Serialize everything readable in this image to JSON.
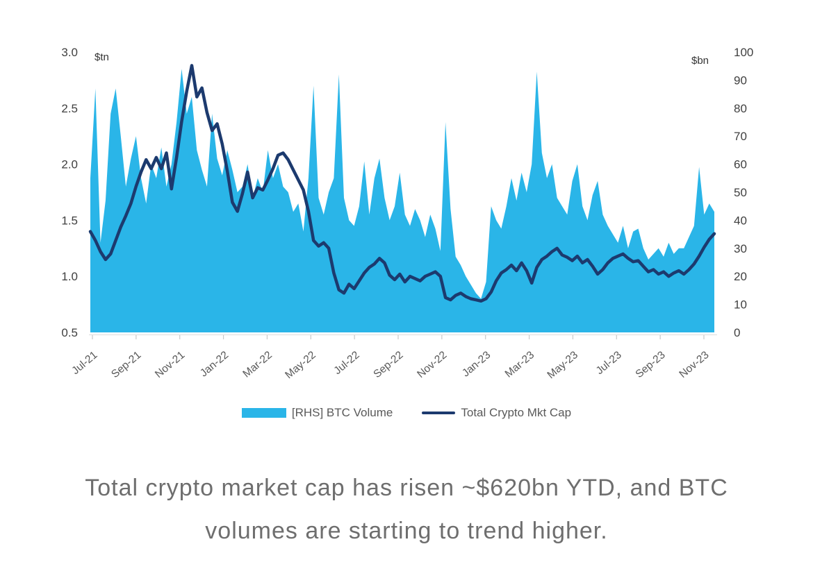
{
  "caption": {
    "line1": "Total crypto market cap has risen ~$620bn YTD, and BTC",
    "line2": "volumes are starting to trend higher."
  },
  "chart_data": {
    "type": "area+line",
    "title": "",
    "grid": false,
    "legend_position": "bottom",
    "x_range": [
      "Jul-21",
      "Nov-23"
    ],
    "resolution": "weekly (estimated from pixels)",
    "x_tick_labels": [
      "Jul-21",
      "Sep-21",
      "Nov-21",
      "Jan-22",
      "Mar-22",
      "May-22",
      "Jul-22",
      "Sep-22",
      "Nov-22",
      "Jan-23",
      "Mar-23",
      "May-23",
      "Jul-23",
      "Sep-23",
      "Nov-23"
    ],
    "left_axis": {
      "label": "$tn",
      "min": 0.5,
      "max": 3.0,
      "ticks": [
        "3.0",
        "2.5",
        "2.0",
        "1.5",
        "1.0",
        "0.5"
      ]
    },
    "right_axis": {
      "label": "$bn",
      "min": 0,
      "max": 100,
      "ticks": [
        "100",
        "90",
        "80",
        "70",
        "60",
        "50",
        "40",
        "30",
        "20",
        "10",
        "0"
      ]
    },
    "colors": {
      "volume_area": "#2ab5e8",
      "mkt_cap_line": "#1c3a6e",
      "axis_text": "#3f3f3f",
      "x_label_text": "#595959",
      "legend_text": "#595959",
      "caption_text": "#6e6e6e",
      "tick_mark": "#c9c9c9"
    },
    "series": [
      {
        "name": "[RHS] BTC Volume",
        "type": "area",
        "axis": "right",
        "unit": "$bn",
        "color": "#2ab5e8",
        "values": [
          55,
          87,
          32,
          47,
          78,
          87,
          70,
          52,
          62,
          70,
          55,
          46,
          60,
          55,
          66,
          52,
          60,
          75,
          94,
          78,
          84,
          65,
          58,
          52,
          78,
          62,
          56,
          65,
          58,
          50,
          52,
          60,
          48,
          55,
          50,
          65,
          55,
          60,
          52,
          50,
          43,
          46,
          36,
          55,
          88,
          48,
          42,
          50,
          55,
          92,
          48,
          40,
          38,
          45,
          61,
          42,
          55,
          62,
          48,
          40,
          45,
          57,
          42,
          38,
          44,
          40,
          34,
          42,
          37,
          29,
          75,
          44,
          27,
          24,
          20,
          17,
          14,
          12,
          18,
          45,
          40,
          37,
          45,
          55,
          47,
          57,
          50,
          60,
          93,
          64,
          55,
          60,
          48,
          45,
          42,
          54,
          60,
          45,
          40,
          49,
          54,
          42,
          38,
          35,
          32,
          38,
          30,
          36,
          37,
          30,
          26,
          28,
          30,
          27,
          32,
          28,
          30,
          30,
          34,
          38,
          59,
          42,
          46,
          43
        ]
      },
      {
        "name": "Total Crypto Mkt Cap",
        "type": "line",
        "axis": "left",
        "unit": "$tn",
        "color": "#1c3a6e",
        "values": [
          1.4,
          1.32,
          1.22,
          1.15,
          1.2,
          1.32,
          1.44,
          1.54,
          1.65,
          1.8,
          1.93,
          2.04,
          1.96,
          2.06,
          1.96,
          2.1,
          1.78,
          2.06,
          2.38,
          2.65,
          2.88,
          2.6,
          2.68,
          2.46,
          2.3,
          2.36,
          2.18,
          1.94,
          1.66,
          1.58,
          1.74,
          1.93,
          1.7,
          1.79,
          1.77,
          1.86,
          1.96,
          2.08,
          2.1,
          2.04,
          1.95,
          1.86,
          1.77,
          1.58,
          1.32,
          1.27,
          1.3,
          1.25,
          1.03,
          0.88,
          0.85,
          0.93,
          0.89,
          0.96,
          1.03,
          1.08,
          1.11,
          1.16,
          1.12,
          1.01,
          0.97,
          1.02,
          0.95,
          1.0,
          0.98,
          0.96,
          1.0,
          1.02,
          1.04,
          1.0,
          0.81,
          0.79,
          0.83,
          0.85,
          0.82,
          0.8,
          0.79,
          0.78,
          0.8,
          0.86,
          0.96,
          1.03,
          1.06,
          1.1,
          1.05,
          1.12,
          1.05,
          0.94,
          1.08,
          1.15,
          1.18,
          1.22,
          1.25,
          1.19,
          1.17,
          1.14,
          1.18,
          1.12,
          1.15,
          1.09,
          1.02,
          1.06,
          1.12,
          1.16,
          1.18,
          1.2,
          1.16,
          1.13,
          1.14,
          1.09,
          1.04,
          1.06,
          1.02,
          1.04,
          1.0,
          1.03,
          1.05,
          1.02,
          1.06,
          1.11,
          1.18,
          1.26,
          1.33,
          1.38
        ]
      }
    ]
  }
}
